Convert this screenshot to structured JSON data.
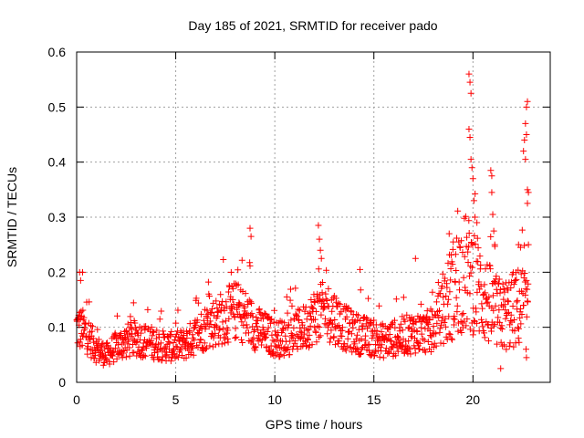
{
  "chart_data": {
    "type": "scatter",
    "title": "Day 185 of 2021, SRMTID for receiver pado",
    "xlabel": "GPS time / hours",
    "ylabel": "SRMTID / TECUs",
    "xlim": [
      0,
      23.9
    ],
    "ylim": [
      0,
      0.6
    ],
    "xticks": [
      0,
      5,
      10,
      15,
      20
    ],
    "yticks": [
      0,
      0.1,
      0.2,
      0.3,
      0.4,
      0.5,
      0.6
    ],
    "xtick_labels": [
      "0",
      "5",
      "10",
      "15",
      "20"
    ],
    "ytick_labels": [
      "0",
      "0.1",
      "0.2",
      "0.3",
      "0.4",
      "0.5",
      "0.6"
    ],
    "grid": true,
    "marker": "+",
    "series": [
      {
        "name": "SRMTID",
        "color": "#ff0000",
        "x_start": 0.0,
        "x_step": 0.0175,
        "baseline_x": [
          0,
          0.5,
          1.0,
          1.5,
          2.0,
          2.5,
          3.0,
          3.5,
          4.0,
          4.5,
          5.0,
          5.5,
          6.0,
          6.5,
          7.0,
          7.5,
          8.0,
          8.5,
          9.0,
          9.5,
          10.0,
          10.5,
          11.0,
          11.5,
          12.0,
          12.5,
          13.0,
          13.5,
          14.0,
          14.5,
          15.0,
          15.5,
          16.0,
          16.5,
          17.0,
          17.5,
          18.0,
          18.5,
          19.0,
          19.5,
          20.0,
          20.5,
          21.0,
          21.5,
          22.0,
          22.5,
          22.8
        ],
        "baseline_y": [
          0.1,
          0.09,
          0.06,
          0.05,
          0.065,
          0.075,
          0.08,
          0.075,
          0.07,
          0.065,
          0.065,
          0.07,
          0.085,
          0.1,
          0.11,
          0.12,
          0.13,
          0.12,
          0.1,
          0.09,
          0.08,
          0.08,
          0.09,
          0.1,
          0.12,
          0.13,
          0.12,
          0.1,
          0.09,
          0.085,
          0.08,
          0.075,
          0.08,
          0.085,
          0.09,
          0.09,
          0.095,
          0.13,
          0.17,
          0.2,
          0.19,
          0.16,
          0.13,
          0.12,
          0.13,
          0.14,
          0.12
        ],
        "spikes": [
          [
            0.15,
            0.2
          ],
          [
            0.2,
            0.185
          ],
          [
            0.3,
            0.2
          ],
          [
            7.8,
            0.2
          ],
          [
            8.75,
            0.28
          ],
          [
            8.8,
            0.265
          ],
          [
            12.2,
            0.285
          ],
          [
            12.25,
            0.26
          ],
          [
            12.3,
            0.24
          ],
          [
            12.35,
            0.225
          ],
          [
            14.3,
            0.205
          ],
          [
            17.1,
            0.225
          ],
          [
            18.8,
            0.27
          ],
          [
            19.8,
            0.56
          ],
          [
            19.85,
            0.545
          ],
          [
            19.9,
            0.525
          ],
          [
            19.8,
            0.46
          ],
          [
            19.85,
            0.445
          ],
          [
            19.9,
            0.405
          ],
          [
            19.95,
            0.39
          ],
          [
            20.0,
            0.37
          ],
          [
            20.05,
            0.33
          ],
          [
            20.1,
            0.3
          ],
          [
            20.2,
            0.29
          ],
          [
            20.9,
            0.385
          ],
          [
            20.95,
            0.375
          ],
          [
            20.95,
            0.345
          ],
          [
            21.0,
            0.305
          ],
          [
            21.05,
            0.275
          ],
          [
            21.1,
            0.25
          ],
          [
            22.3,
            0.25
          ],
          [
            22.4,
            0.245
          ],
          [
            22.55,
            0.42
          ],
          [
            22.6,
            0.44
          ],
          [
            22.65,
            0.47
          ],
          [
            22.7,
            0.5
          ],
          [
            22.75,
            0.51
          ],
          [
            22.7,
            0.45
          ],
          [
            22.65,
            0.405
          ],
          [
            22.75,
            0.35
          ],
          [
            22.8,
            0.345
          ],
          [
            22.75,
            0.325
          ],
          [
            22.8,
            0.25
          ],
          [
            21.4,
            0.025
          ],
          [
            22.7,
            0.045
          ]
        ]
      }
    ]
  }
}
